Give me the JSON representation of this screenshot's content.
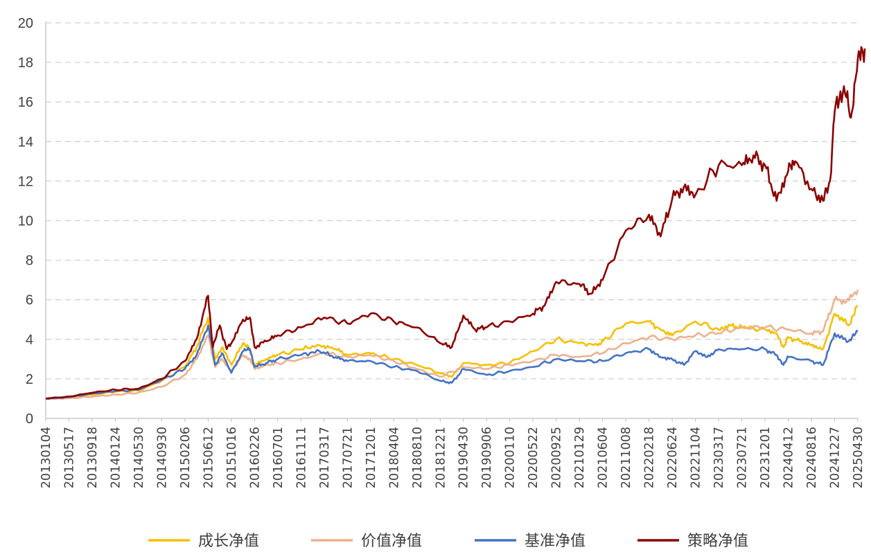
{
  "chart_data": {
    "type": "line",
    "title": "",
    "xlabel": "",
    "ylabel": "",
    "ylim": [
      0,
      20
    ],
    "y_ticks": [
      "0",
      "2",
      "4",
      "6",
      "8",
      "10",
      "12",
      "14",
      "16",
      "18",
      "20"
    ],
    "x_tick_labels": [
      "20130104",
      "20130517",
      "20130918",
      "20140124",
      "20140530",
      "20140930",
      "20150206",
      "20150612",
      "20151016",
      "20160226",
      "20160701",
      "20161111",
      "20170317",
      "20170721",
      "20171201",
      "20180404",
      "20180810",
      "20181221",
      "20190430",
      "20190906",
      "20200110",
      "20200522",
      "20200925",
      "20210129",
      "20210604",
      "20211008",
      "20220218",
      "20220624",
      "20221104",
      "20230317",
      "20230721",
      "20231201",
      "20240412",
      "20240816",
      "20241227",
      "20250430"
    ],
    "grid": "horizontal dashed",
    "legend_position": "bottom",
    "series": [
      {
        "name": "成长净值",
        "color": "#F5C000",
        "points": [
          [
            0,
            1.0
          ],
          [
            1,
            1.05
          ],
          [
            2,
            1.2
          ],
          [
            3,
            1.35
          ],
          [
            4,
            1.4
          ],
          [
            5,
            1.9
          ],
          [
            6,
            2.6
          ],
          [
            6.5,
            3.6
          ],
          [
            7,
            5.1
          ],
          [
            7.3,
            3.0
          ],
          [
            7.6,
            3.6
          ],
          [
            8,
            2.7
          ],
          [
            8.5,
            3.8
          ],
          [
            8.8,
            3.5
          ],
          [
            9,
            2.7
          ],
          [
            9.5,
            3.0
          ],
          [
            10,
            3.2
          ],
          [
            11,
            3.5
          ],
          [
            11.8,
            3.7
          ],
          [
            12.5,
            3.5
          ],
          [
            13,
            3.2
          ],
          [
            14,
            3.3
          ],
          [
            15,
            3.0
          ],
          [
            16,
            2.7
          ],
          [
            17,
            2.3
          ],
          [
            17.5,
            2.1
          ],
          [
            18,
            2.8
          ],
          [
            19,
            2.7
          ],
          [
            20,
            2.8
          ],
          [
            21,
            3.4
          ],
          [
            22,
            4.0
          ],
          [
            23,
            3.8
          ],
          [
            23.8,
            3.7
          ],
          [
            24,
            3.9
          ],
          [
            25,
            4.8
          ],
          [
            26,
            4.9
          ],
          [
            26.5,
            4.5
          ],
          [
            27,
            4.2
          ],
          [
            28,
            4.9
          ],
          [
            29,
            4.5
          ],
          [
            29.5,
            4.7
          ],
          [
            30,
            4.6
          ],
          [
            31,
            4.5
          ],
          [
            31.5,
            4.3
          ],
          [
            31.8,
            3.6
          ],
          [
            32,
            4.1
          ],
          [
            32.5,
            3.9
          ],
          [
            33,
            3.7
          ],
          [
            33.5,
            3.5
          ],
          [
            34,
            5.3
          ],
          [
            34.6,
            4.7
          ],
          [
            35,
            5.7
          ]
        ]
      },
      {
        "name": "价值净值",
        "color": "#EDB18E",
        "points": [
          [
            0,
            1.0
          ],
          [
            1,
            1.02
          ],
          [
            2,
            1.1
          ],
          [
            3,
            1.2
          ],
          [
            4,
            1.3
          ],
          [
            5,
            1.6
          ],
          [
            6,
            2.2
          ],
          [
            6.5,
            3.0
          ],
          [
            7,
            4.2
          ],
          [
            7.3,
            2.6
          ],
          [
            7.6,
            3.0
          ],
          [
            8,
            2.4
          ],
          [
            8.5,
            3.2
          ],
          [
            8.8,
            3.0
          ],
          [
            9,
            2.5
          ],
          [
            9.5,
            2.7
          ],
          [
            10,
            2.8
          ],
          [
            11,
            3.0
          ],
          [
            12,
            3.3
          ],
          [
            13,
            3.1
          ],
          [
            14,
            3.2
          ],
          [
            15,
            2.9
          ],
          [
            16,
            2.5
          ],
          [
            17,
            2.1
          ],
          [
            18,
            2.6
          ],
          [
            19,
            2.5
          ],
          [
            20,
            2.7
          ],
          [
            21,
            2.9
          ],
          [
            22,
            3.2
          ],
          [
            23,
            3.1
          ],
          [
            24,
            3.3
          ],
          [
            25,
            3.8
          ],
          [
            26,
            4.1
          ],
          [
            27,
            4.0
          ],
          [
            28,
            4.2
          ],
          [
            29,
            4.3
          ],
          [
            30,
            4.6
          ],
          [
            31,
            4.6
          ],
          [
            32,
            4.5
          ],
          [
            33,
            4.3
          ],
          [
            33.5,
            4.4
          ],
          [
            34,
            6.0
          ],
          [
            34.5,
            5.9
          ],
          [
            35,
            6.5
          ]
        ]
      },
      {
        "name": "基准净值",
        "color": "#4472C4",
        "points": [
          [
            0,
            1.0
          ],
          [
            1,
            1.08
          ],
          [
            2,
            1.25
          ],
          [
            3,
            1.38
          ],
          [
            4,
            1.45
          ],
          [
            5,
            1.95
          ],
          [
            6,
            2.5
          ],
          [
            6.5,
            3.2
          ],
          [
            7,
            4.7
          ],
          [
            7.3,
            2.7
          ],
          [
            7.6,
            3.3
          ],
          [
            8,
            2.3
          ],
          [
            8.5,
            3.4
          ],
          [
            8.8,
            3.5
          ],
          [
            9,
            2.6
          ],
          [
            9.5,
            2.8
          ],
          [
            10,
            3.0
          ],
          [
            11,
            3.2
          ],
          [
            11.8,
            3.4
          ],
          [
            12.5,
            3.1
          ],
          [
            13,
            2.9
          ],
          [
            14,
            2.9
          ],
          [
            15,
            2.6
          ],
          [
            16,
            2.4
          ],
          [
            17,
            1.9
          ],
          [
            17.5,
            1.8
          ],
          [
            18,
            2.5
          ],
          [
            19,
            2.2
          ],
          [
            20,
            2.4
          ],
          [
            21,
            2.6
          ],
          [
            22,
            3.0
          ],
          [
            23,
            2.9
          ],
          [
            24,
            2.9
          ],
          [
            25,
            3.3
          ],
          [
            26,
            3.5
          ],
          [
            26.5,
            3.1
          ],
          [
            27,
            3.0
          ],
          [
            27.5,
            2.7
          ],
          [
            28,
            3.4
          ],
          [
            28.5,
            3.1
          ],
          [
            29,
            3.5
          ],
          [
            30,
            3.5
          ],
          [
            31,
            3.5
          ],
          [
            31.5,
            3.2
          ],
          [
            31.8,
            2.7
          ],
          [
            32,
            3.1
          ],
          [
            33,
            2.9
          ],
          [
            33.5,
            2.7
          ],
          [
            34,
            4.3
          ],
          [
            34.6,
            3.9
          ],
          [
            35,
            4.4
          ]
        ]
      },
      {
        "name": "策略净值",
        "color": "#8B0000",
        "points": [
          [
            0,
            1.0
          ],
          [
            1,
            1.1
          ],
          [
            2,
            1.3
          ],
          [
            3,
            1.45
          ],
          [
            4,
            1.5
          ],
          [
            5,
            2.0
          ],
          [
            6,
            2.9
          ],
          [
            6.5,
            4.0
          ],
          [
            7,
            6.2
          ],
          [
            7.2,
            3.6
          ],
          [
            7.5,
            4.7
          ],
          [
            7.8,
            3.5
          ],
          [
            8,
            3.8
          ],
          [
            8.5,
            5.0
          ],
          [
            8.8,
            5.1
          ],
          [
            9,
            3.6
          ],
          [
            9.5,
            3.9
          ],
          [
            10,
            4.2
          ],
          [
            11,
            4.6
          ],
          [
            12,
            5.1
          ],
          [
            13,
            4.8
          ],
          [
            14,
            5.3
          ],
          [
            15,
            4.9
          ],
          [
            16,
            4.6
          ],
          [
            17,
            3.8
          ],
          [
            17.5,
            3.6
          ],
          [
            18,
            5.2
          ],
          [
            18.5,
            4.5
          ],
          [
            19,
            4.6
          ],
          [
            20,
            4.9
          ],
          [
            21,
            5.3
          ],
          [
            21.5,
            5.7
          ],
          [
            22,
            6.9
          ],
          [
            23,
            6.8
          ],
          [
            23.5,
            6.3
          ],
          [
            24,
            7.0
          ],
          [
            25,
            9.5
          ],
          [
            26,
            10.3
          ],
          [
            26.5,
            9.2
          ],
          [
            27,
            11.1
          ],
          [
            27.5,
            11.7
          ],
          [
            28,
            11.3
          ],
          [
            29,
            12.8
          ],
          [
            30,
            12.8
          ],
          [
            30.5,
            13.3
          ],
          [
            31,
            12.8
          ],
          [
            31.5,
            11.0
          ],
          [
            32,
            12.5
          ],
          [
            32.3,
            13.0
          ],
          [
            33,
            11.6
          ],
          [
            33.5,
            11.0
          ],
          [
            33.8,
            12.0
          ],
          [
            34,
            15.5
          ],
          [
            34.4,
            16.8
          ],
          [
            34.7,
            15.2
          ],
          [
            35,
            18.2
          ],
          [
            35.3,
            18.7
          ]
        ]
      }
    ]
  }
}
